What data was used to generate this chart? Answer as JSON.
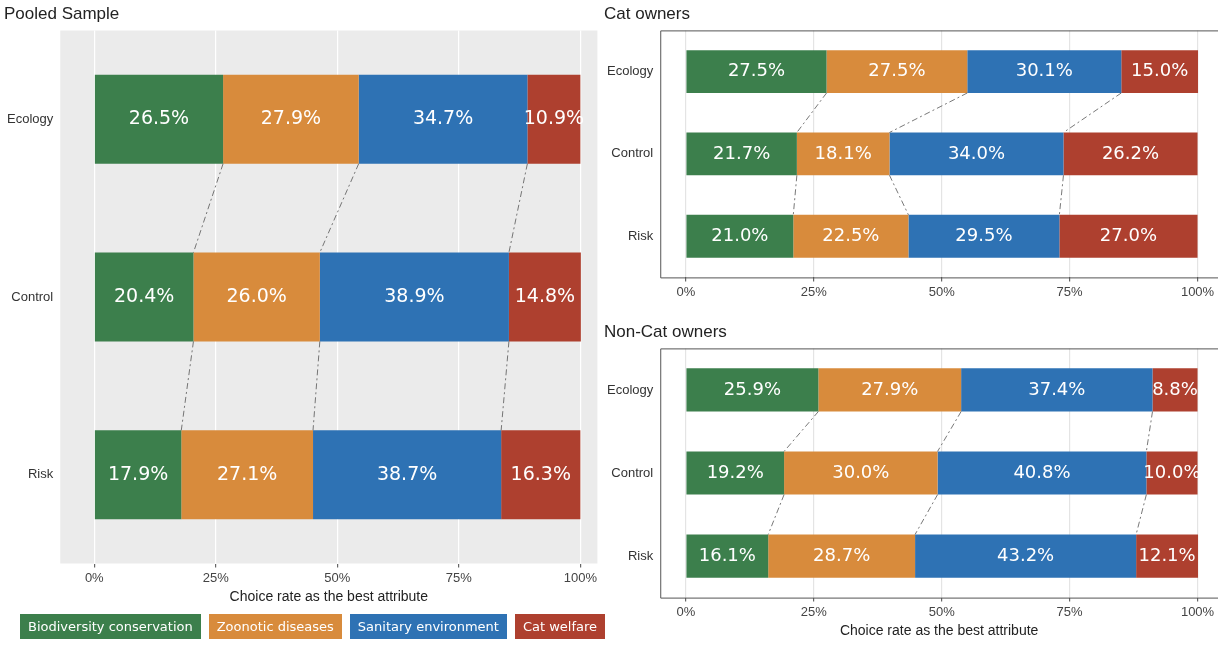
{
  "chart_data": [
    {
      "type": "bar",
      "title": "Pooled Sample",
      "xlabel": "Choice rate as the best attribute",
      "orientation": "horizontal",
      "stacked": true,
      "grid": "x",
      "legend": "bottom",
      "categories": [
        "Ecology",
        "Control",
        "Risk"
      ],
      "xlim": [
        -7,
        103.5
      ],
      "xticks": [
        {
          "value": 0,
          "label": "0%"
        },
        {
          "value": 25,
          "label": "25%"
        },
        {
          "value": 50,
          "label": "50%"
        },
        {
          "value": 75,
          "label": "75%"
        },
        {
          "value": 100,
          "label": "100%"
        }
      ],
      "series": [
        {
          "name": "Biodiversity conservation",
          "color": "#3c7f4c",
          "values": [
            26.5,
            20.4,
            17.9
          ],
          "value_labels": [
            "26.5%",
            "20.4%",
            "17.9%"
          ]
        },
        {
          "name": "Zoonotic diseases",
          "color": "#d88b3c",
          "values": [
            27.9,
            26.0,
            27.1
          ],
          "value_labels": [
            "27.9%",
            "26.0%",
            "27.1%"
          ]
        },
        {
          "name": "Sanitary environment",
          "color": "#2e72b4",
          "values": [
            34.7,
            38.9,
            38.7
          ],
          "value_labels": [
            "34.7%",
            "38.9%",
            "38.7%"
          ]
        },
        {
          "name": "Cat welfare",
          "color": "#ae402f",
          "values": [
            10.9,
            14.8,
            16.3
          ],
          "value_labels": [
            "10.9%",
            "14.8%",
            "16.3%"
          ]
        }
      ]
    },
    {
      "type": "bar",
      "title": "Cat owners",
      "orientation": "horizontal",
      "stacked": true,
      "grid": "x",
      "categories": [
        "Ecology",
        "Control",
        "Risk"
      ],
      "xlim": [
        -5,
        104
      ],
      "xticks": [
        {
          "value": 0,
          "label": "0%"
        },
        {
          "value": 25,
          "label": "25%"
        },
        {
          "value": 50,
          "label": "50%"
        },
        {
          "value": 75,
          "label": "75%"
        },
        {
          "value": 100,
          "label": "100%"
        }
      ],
      "series": [
        {
          "color": "#3c7f4c",
          "values": [
            27.5,
            21.7,
            21.0
          ],
          "value_labels": [
            "27.5%",
            "21.7%",
            "21.0%"
          ]
        },
        {
          "color": "#d88b3c",
          "values": [
            27.5,
            18.1,
            22.5
          ],
          "value_labels": [
            "27.5%",
            "18.1%",
            "22.5%"
          ]
        },
        {
          "color": "#2e72b4",
          "values": [
            30.1,
            34.0,
            29.5
          ],
          "value_labels": [
            "30.1%",
            "34.0%",
            "29.5%"
          ]
        },
        {
          "color": "#ae402f",
          "values": [
            15.0,
            26.2,
            27.0
          ],
          "value_labels": [
            "15.0%",
            "26.2%",
            "27.0%"
          ]
        }
      ]
    },
    {
      "type": "bar",
      "title": "Non-Cat owners",
      "xlabel": "Choice rate as the best attribute",
      "orientation": "horizontal",
      "stacked": true,
      "grid": "x",
      "categories": [
        "Ecology",
        "Control",
        "Risk"
      ],
      "xlim": [
        -5,
        104
      ],
      "xticks": [
        {
          "value": 0,
          "label": "0%"
        },
        {
          "value": 25,
          "label": "25%"
        },
        {
          "value": 50,
          "label": "50%"
        },
        {
          "value": 75,
          "label": "75%"
        },
        {
          "value": 100,
          "label": "100%"
        }
      ],
      "series": [
        {
          "color": "#3c7f4c",
          "values": [
            25.9,
            19.2,
            16.1
          ],
          "value_labels": [
            "25.9%",
            "19.2%",
            "16.1%"
          ]
        },
        {
          "color": "#d88b3c",
          "values": [
            27.9,
            30.0,
            28.7
          ],
          "value_labels": [
            "27.9%",
            "30.0%",
            "28.7%"
          ]
        },
        {
          "color": "#2e72b4",
          "values": [
            37.4,
            40.8,
            43.2
          ],
          "value_labels": [
            "37.4%",
            "40.8%",
            "43.2%"
          ]
        },
        {
          "color": "#ae402f",
          "values": [
            8.8,
            10.0,
            12.1
          ],
          "value_labels": [
            "8.8%",
            "10.0%",
            "12.1%"
          ]
        }
      ]
    }
  ]
}
